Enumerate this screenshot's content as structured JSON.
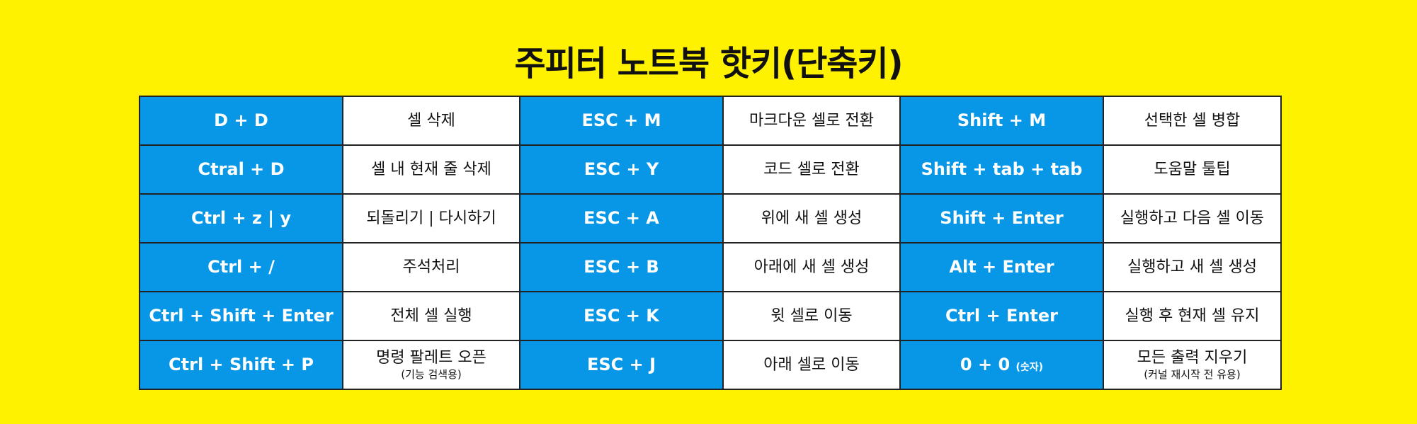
{
  "title": "주피터 노트북 핫키(단축키)",
  "colors": {
    "background": "#fff200",
    "key_cell": "#0797e6",
    "desc_cell": "#ffffff",
    "border": "#222222"
  },
  "rows": [
    [
      {
        "key": "D + D"
      },
      {
        "desc": "셀 삭제"
      },
      {
        "key": "ESC + M"
      },
      {
        "desc": "마크다운 셀로 전환"
      },
      {
        "key": "Shift + M"
      },
      {
        "desc": "선택한 셀 병합"
      }
    ],
    [
      {
        "key": "Ctral + D"
      },
      {
        "desc": "셀 내 현재 줄 삭제"
      },
      {
        "key": "ESC + Y"
      },
      {
        "desc": "코드 셀로 전환"
      },
      {
        "key": "Shift + tab  + tab"
      },
      {
        "desc": "도움말 툴팁"
      }
    ],
    [
      {
        "key": "Ctrl + z | y"
      },
      {
        "desc": "되돌리기 | 다시하기"
      },
      {
        "key": "ESC + A"
      },
      {
        "desc": "위에 새 셀 생성"
      },
      {
        "key": "Shift + Enter"
      },
      {
        "desc": "실행하고 다음 셀 이동"
      }
    ],
    [
      {
        "key": "Ctrl + /"
      },
      {
        "desc": "주석처리"
      },
      {
        "key": "ESC + B"
      },
      {
        "desc": "아래에 새 셀 생성"
      },
      {
        "key": "Alt + Enter"
      },
      {
        "desc": "실행하고 새 셀 생성"
      }
    ],
    [
      {
        "key": "Ctrl + Shift + Enter"
      },
      {
        "desc": "전체 셀 실행"
      },
      {
        "key": "ESC + K"
      },
      {
        "desc": "윗 셀로 이동"
      },
      {
        "key": "Ctrl + Enter"
      },
      {
        "desc": "실행 후 현재 셀 유지"
      }
    ],
    [
      {
        "key": "Ctrl + Shift + P"
      },
      {
        "desc": "명령 팔레트 오픈",
        "sub": "(기능  검색용)"
      },
      {
        "key": "ESC + J"
      },
      {
        "desc": "아래 셀로 이동"
      },
      {
        "key": "0 + 0",
        "note": "(숫자)"
      },
      {
        "desc": "모든 출력 지우기",
        "sub": "(커널 재시작 전 유용)"
      }
    ]
  ]
}
